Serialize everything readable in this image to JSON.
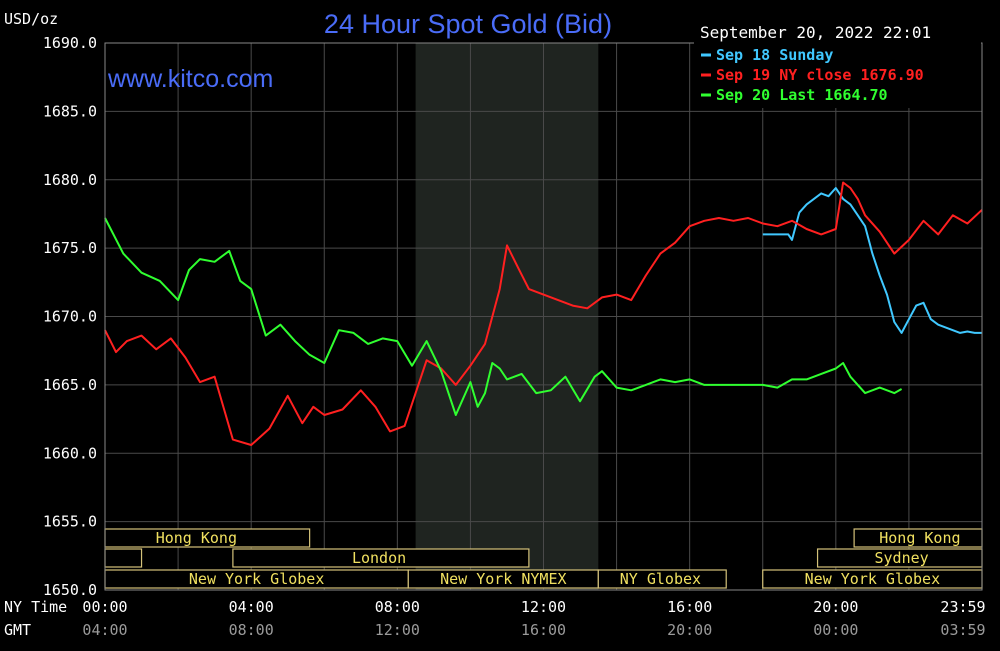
{
  "chart_data": {
    "type": "line",
    "title": "24 Hour Spot Gold (Bid)",
    "ylabel": "USD/oz",
    "watermark": "www.kitco.com",
    "timestamp": "September 20, 2022 22:01",
    "ylim": [
      1650,
      1690
    ],
    "y_ticks": [
      "1690.0",
      "1685.0",
      "1680.0",
      "1675.0",
      "1670.0",
      "1665.0",
      "1660.0",
      "1655.0",
      "1650.0"
    ],
    "x_axis_rows": [
      {
        "label": "NY Time",
        "color": "#ffffff",
        "ticks": [
          "00:00",
          "04:00",
          "08:00",
          "12:00",
          "16:00",
          "20:00",
          "23:59"
        ]
      },
      {
        "label": "GMT",
        "color": "#9a9a9a",
        "ticks": [
          "04:00",
          "08:00",
          "12:00",
          "16:00",
          "20:00",
          "00:00",
          "03:59"
        ]
      }
    ],
    "legend": [
      {
        "text": "Sep 18 Sunday",
        "color": "#40c8ff"
      },
      {
        "text": "Sep 19 NY close 1676.90",
        "color": "#ff2020"
      },
      {
        "text": "Sep 20 Last 1664.70",
        "color": "#30ff30"
      }
    ],
    "grid": true,
    "shaded_hours": [
      8.5,
      13.5
    ],
    "sessions": [
      {
        "label": "Hong Kong",
        "row": 0,
        "segments": [
          [
            0,
            5.6
          ]
        ],
        "label_hour": 2.5
      },
      {
        "label": "Hong Kong",
        "row": 0,
        "segments": [
          [
            20.5,
            24
          ]
        ],
        "label_hour": 22.3
      },
      {
        "label": "London",
        "row": 1,
        "segments": [
          [
            0,
            1.0
          ],
          [
            3.5,
            11.6
          ]
        ],
        "label_hour": 7.5
      },
      {
        "label": "Sydney",
        "row": 1,
        "segments": [
          [
            19.5,
            24
          ]
        ],
        "label_hour": 21.8
      },
      {
        "label": "New York Globex",
        "row": 2,
        "segments": [
          [
            0,
            8.3
          ]
        ],
        "label_hour": 4.15
      },
      {
        "label": "New York NYMEX",
        "row": 2,
        "segments": [
          [
            8.3,
            13.5
          ]
        ],
        "label_hour": 10.9
      },
      {
        "label": "NY Globex",
        "row": 2,
        "segments": [
          [
            13.5,
            17.0
          ]
        ],
        "label_hour": 15.2
      },
      {
        "label": "New York Globex",
        "row": 2,
        "segments": [
          [
            18.0,
            24
          ]
        ],
        "label_hour": 21.0
      }
    ],
    "series": [
      {
        "name": "Sep 18 Sunday",
        "color": "#40c8ff",
        "x": [
          18.0,
          18.7,
          18.8,
          19.0,
          19.2,
          19.4,
          19.6,
          19.8,
          20.0,
          20.2,
          20.4,
          20.6,
          20.8,
          21.0,
          21.2,
          21.4,
          21.6,
          21.8,
          22.0,
          22.2,
          22.4,
          22.6,
          22.8,
          23.0,
          23.2,
          23.4,
          23.6,
          23.8,
          24.0
        ],
        "y": [
          1676.0,
          1676.0,
          1675.6,
          1677.6,
          1678.2,
          1678.6,
          1679.0,
          1678.8,
          1679.4,
          1678.6,
          1678.2,
          1677.4,
          1676.6,
          1674.6,
          1673.0,
          1671.6,
          1669.6,
          1668.8,
          1669.8,
          1670.8,
          1671.0,
          1669.8,
          1669.4,
          1669.2,
          1669.0,
          1668.8,
          1668.9,
          1668.8,
          1668.8
        ]
      },
      {
        "name": "Sep 19 NY close 1676.90",
        "color": "#ff2020",
        "x": [
          0.0,
          0.3,
          0.6,
          1.0,
          1.4,
          1.8,
          2.2,
          2.6,
          3.0,
          3.5,
          4.0,
          4.5,
          5.0,
          5.4,
          5.7,
          6.0,
          6.5,
          7.0,
          7.4,
          7.8,
          8.2,
          8.5,
          8.8,
          9.2,
          9.6,
          10.0,
          10.4,
          10.8,
          11.0,
          11.3,
          11.6,
          12.0,
          12.4,
          12.8,
          13.2,
          13.6,
          14.0,
          14.4,
          14.8,
          15.2,
          15.6,
          16.0,
          16.4,
          16.8,
          17.2,
          17.6,
          18.0,
          18.4,
          18.8,
          19.2,
          19.6,
          20.0,
          20.2,
          20.4,
          20.6,
          20.8,
          21.2,
          21.6,
          22.0,
          22.4,
          22.8,
          23.2,
          23.6,
          24.0
        ],
        "y": [
          1669.0,
          1667.4,
          1668.2,
          1668.6,
          1667.6,
          1668.4,
          1667.0,
          1665.2,
          1665.6,
          1661.0,
          1660.6,
          1661.8,
          1664.2,
          1662.2,
          1663.4,
          1662.8,
          1663.2,
          1664.6,
          1663.4,
          1661.6,
          1662.0,
          1664.4,
          1666.8,
          1666.2,
          1665.0,
          1666.4,
          1668.0,
          1672.0,
          1675.2,
          1673.6,
          1672.0,
          1671.6,
          1671.2,
          1670.8,
          1670.6,
          1671.4,
          1671.6,
          1671.2,
          1673.0,
          1674.6,
          1675.4,
          1676.6,
          1677.0,
          1677.2,
          1677.0,
          1677.2,
          1676.8,
          1676.6,
          1677.0,
          1676.4,
          1676.0,
          1676.4,
          1679.8,
          1679.4,
          1678.6,
          1677.4,
          1676.2,
          1674.6,
          1675.6,
          1677.0,
          1676.0,
          1677.4,
          1676.8,
          1677.8
        ]
      },
      {
        "name": "Sep 20 Last 1664.70",
        "color": "#30ff30",
        "x": [
          0.0,
          0.5,
          1.0,
          1.5,
          2.0,
          2.3,
          2.6,
          3.0,
          3.4,
          3.7,
          4.0,
          4.4,
          4.8,
          5.2,
          5.6,
          6.0,
          6.4,
          6.8,
          7.2,
          7.6,
          8.0,
          8.4,
          8.8,
          9.2,
          9.6,
          10.0,
          10.2,
          10.4,
          10.6,
          10.8,
          11.0,
          11.4,
          11.8,
          12.2,
          12.6,
          13.0,
          13.4,
          13.6,
          14.0,
          14.4,
          14.8,
          15.2,
          15.6,
          16.0,
          16.4,
          16.8,
          17.2,
          17.6,
          18.0,
          18.4,
          18.8,
          19.2,
          19.6,
          20.0,
          20.2,
          20.4,
          20.6,
          20.8,
          21.2,
          21.6,
          21.8
        ],
        "y": [
          1677.2,
          1674.6,
          1673.2,
          1672.6,
          1671.2,
          1673.4,
          1674.2,
          1674.0,
          1674.8,
          1672.6,
          1672.0,
          1668.6,
          1669.4,
          1668.2,
          1667.2,
          1666.6,
          1669.0,
          1668.8,
          1668.0,
          1668.4,
          1668.2,
          1666.4,
          1668.2,
          1666.0,
          1662.8,
          1665.2,
          1663.4,
          1664.4,
          1666.6,
          1666.2,
          1665.4,
          1665.8,
          1664.4,
          1664.6,
          1665.6,
          1663.8,
          1665.6,
          1666.0,
          1664.8,
          1664.6,
          1665.0,
          1665.4,
          1665.2,
          1665.4,
          1665.0,
          1665.0,
          1665.0,
          1665.0,
          1665.0,
          1664.8,
          1665.4,
          1665.4,
          1665.8,
          1666.2,
          1666.6,
          1665.6,
          1665.0,
          1664.4,
          1664.8,
          1664.4,
          1664.7
        ]
      }
    ]
  }
}
